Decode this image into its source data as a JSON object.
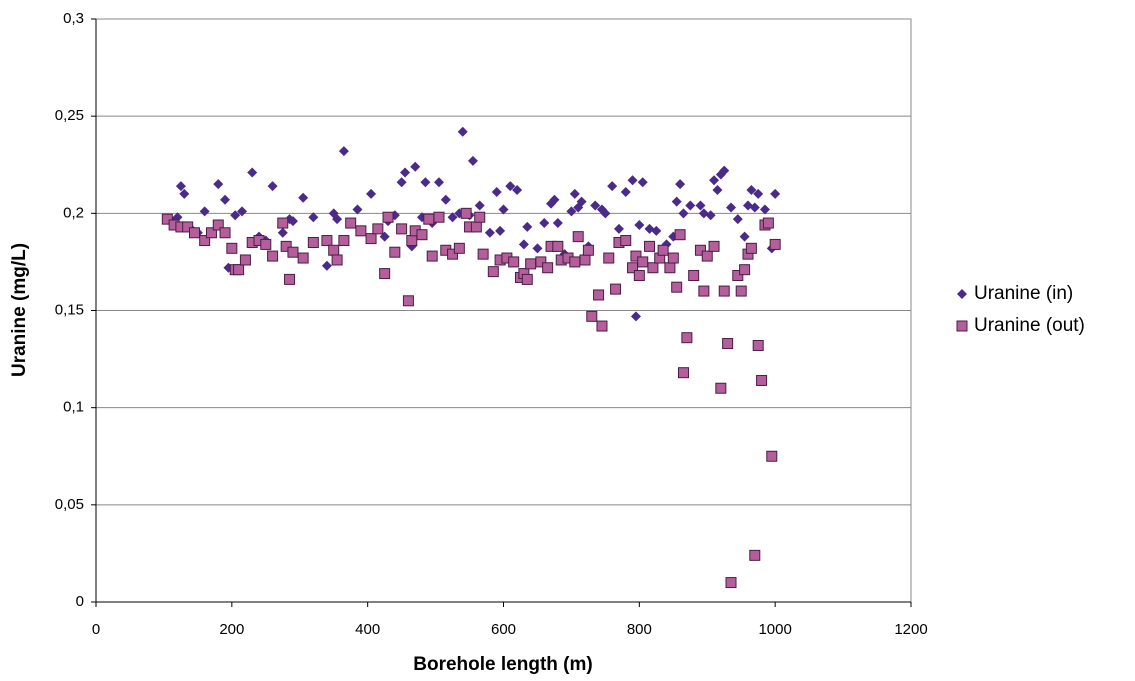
{
  "chart_data": {
    "type": "scatter",
    "xlabel": "Borehole length (m)",
    "ylabel": "Uranine (mg/L)",
    "xlim": [
      0,
      1200
    ],
    "xticks": [
      0,
      200,
      400,
      600,
      800,
      1000,
      1200
    ],
    "ylim": [
      0,
      0.3
    ],
    "yticks": [
      0,
      {
        "value": 0.05,
        "label": "0,05"
      },
      {
        "value": 0.1,
        "label": "0,1"
      },
      {
        "value": 0.15,
        "label": "0,15"
      },
      {
        "value": 0.2,
        "label": "0,2"
      },
      {
        "value": 0.25,
        "label": "0,25"
      },
      {
        "value": 0.3,
        "label": "0,3"
      }
    ],
    "grid": true,
    "legend": "right",
    "series": [
      {
        "name": "Uranine (in)",
        "color": "#4a2a8a",
        "marker": "diamond",
        "x": [
          105,
          115,
          120,
          125,
          130,
          140,
          150,
          160,
          170,
          180,
          190,
          195,
          205,
          215,
          230,
          240,
          250,
          260,
          275,
          285,
          290,
          305,
          320,
          340,
          350,
          355,
          365,
          385,
          405,
          425,
          430,
          440,
          450,
          455,
          465,
          470,
          480,
          485,
          495,
          505,
          515,
          525,
          535,
          540,
          550,
          555,
          565,
          580,
          590,
          595,
          600,
          610,
          620,
          630,
          635,
          650,
          660,
          670,
          675,
          680,
          690,
          700,
          705,
          710,
          715,
          725,
          735,
          745,
          750,
          760,
          770,
          780,
          790,
          795,
          800,
          805,
          815,
          825,
          840,
          850,
          855,
          860,
          865,
          875,
          890,
          895,
          905,
          910,
          915,
          920,
          925,
          935,
          945,
          955,
          960,
          965,
          970,
          975,
          985,
          995,
          1000
        ],
        "values": [
          0.197,
          0.196,
          0.198,
          0.214,
          0.21,
          0.192,
          0.19,
          0.201,
          0.19,
          0.215,
          0.207,
          0.172,
          0.199,
          0.201,
          0.221,
          0.188,
          0.186,
          0.214,
          0.19,
          0.197,
          0.196,
          0.208,
          0.198,
          0.173,
          0.2,
          0.197,
          0.232,
          0.202,
          0.21,
          0.188,
          0.196,
          0.199,
          0.216,
          0.221,
          0.183,
          0.224,
          0.198,
          0.216,
          0.195,
          0.216,
          0.207,
          0.198,
          0.2,
          0.242,
          0.199,
          0.227,
          0.204,
          0.19,
          0.211,
          0.191,
          0.202,
          0.214,
          0.212,
          0.184,
          0.193,
          0.182,
          0.195,
          0.205,
          0.207,
          0.195,
          0.179,
          0.201,
          0.21,
          0.203,
          0.206,
          0.183,
          0.204,
          0.202,
          0.2,
          0.214,
          0.192,
          0.211,
          0.217,
          0.147,
          0.194,
          0.216,
          0.192,
          0.191,
          0.184,
          0.188,
          0.206,
          0.215,
          0.2,
          0.204,
          0.204,
          0.2,
          0.199,
          0.217,
          0.212,
          0.22,
          0.222,
          0.203,
          0.197,
          0.188,
          0.204,
          0.212,
          0.203,
          0.21,
          0.202,
          0.182,
          0.21
        ]
      },
      {
        "name": "Uranine (out)",
        "color": "#b45f9c",
        "marker": "square",
        "x": [
          105,
          115,
          125,
          135,
          145,
          160,
          170,
          180,
          190,
          200,
          205,
          210,
          220,
          230,
          240,
          250,
          260,
          275,
          280,
          285,
          290,
          305,
          320,
          340,
          350,
          355,
          365,
          375,
          390,
          405,
          415,
          425,
          430,
          440,
          450,
          460,
          465,
          470,
          480,
          490,
          495,
          505,
          515,
          525,
          535,
          545,
          550,
          560,
          565,
          570,
          585,
          595,
          605,
          615,
          625,
          630,
          635,
          640,
          655,
          665,
          670,
          680,
          685,
          695,
          705,
          710,
          720,
          725,
          730,
          740,
          745,
          755,
          765,
          770,
          780,
          790,
          795,
          800,
          805,
          815,
          820,
          830,
          835,
          845,
          850,
          855,
          860,
          865,
          870,
          880,
          890,
          895,
          900,
          910,
          920,
          925,
          930,
          935,
          945,
          950,
          955,
          960,
          965,
          970,
          975,
          980,
          985,
          990,
          995,
          1000
        ],
        "values": [
          0.197,
          0.194,
          0.193,
          0.193,
          0.19,
          0.186,
          0.19,
          0.194,
          0.19,
          0.182,
          0.171,
          0.171,
          0.176,
          0.185,
          0.186,
          0.184,
          0.178,
          0.195,
          0.183,
          0.166,
          0.18,
          0.177,
          0.185,
          0.186,
          0.181,
          0.176,
          0.186,
          0.195,
          0.191,
          0.187,
          0.192,
          0.169,
          0.198,
          0.18,
          0.192,
          0.155,
          0.186,
          0.191,
          0.189,
          0.197,
          0.178,
          0.198,
          0.181,
          0.179,
          0.182,
          0.2,
          0.193,
          0.193,
          0.198,
          0.179,
          0.17,
          0.176,
          0.177,
          0.175,
          0.167,
          0.169,
          0.166,
          0.174,
          0.175,
          0.172,
          0.183,
          0.183,
          0.176,
          0.177,
          0.175,
          0.188,
          0.176,
          0.181,
          0.147,
          0.158,
          0.142,
          0.177,
          0.161,
          0.185,
          0.186,
          0.172,
          0.178,
          0.168,
          0.175,
          0.183,
          0.172,
          0.177,
          0.181,
          0.172,
          0.177,
          0.162,
          0.189,
          0.118,
          0.136,
          0.168,
          0.181,
          0.16,
          0.178,
          0.183,
          0.11,
          0.16,
          0.133,
          0.01,
          0.168,
          0.16,
          0.171,
          0.179,
          0.182,
          0.024,
          0.132,
          0.114,
          0.194,
          0.195,
          0.075,
          0.184
        ]
      }
    ]
  }
}
